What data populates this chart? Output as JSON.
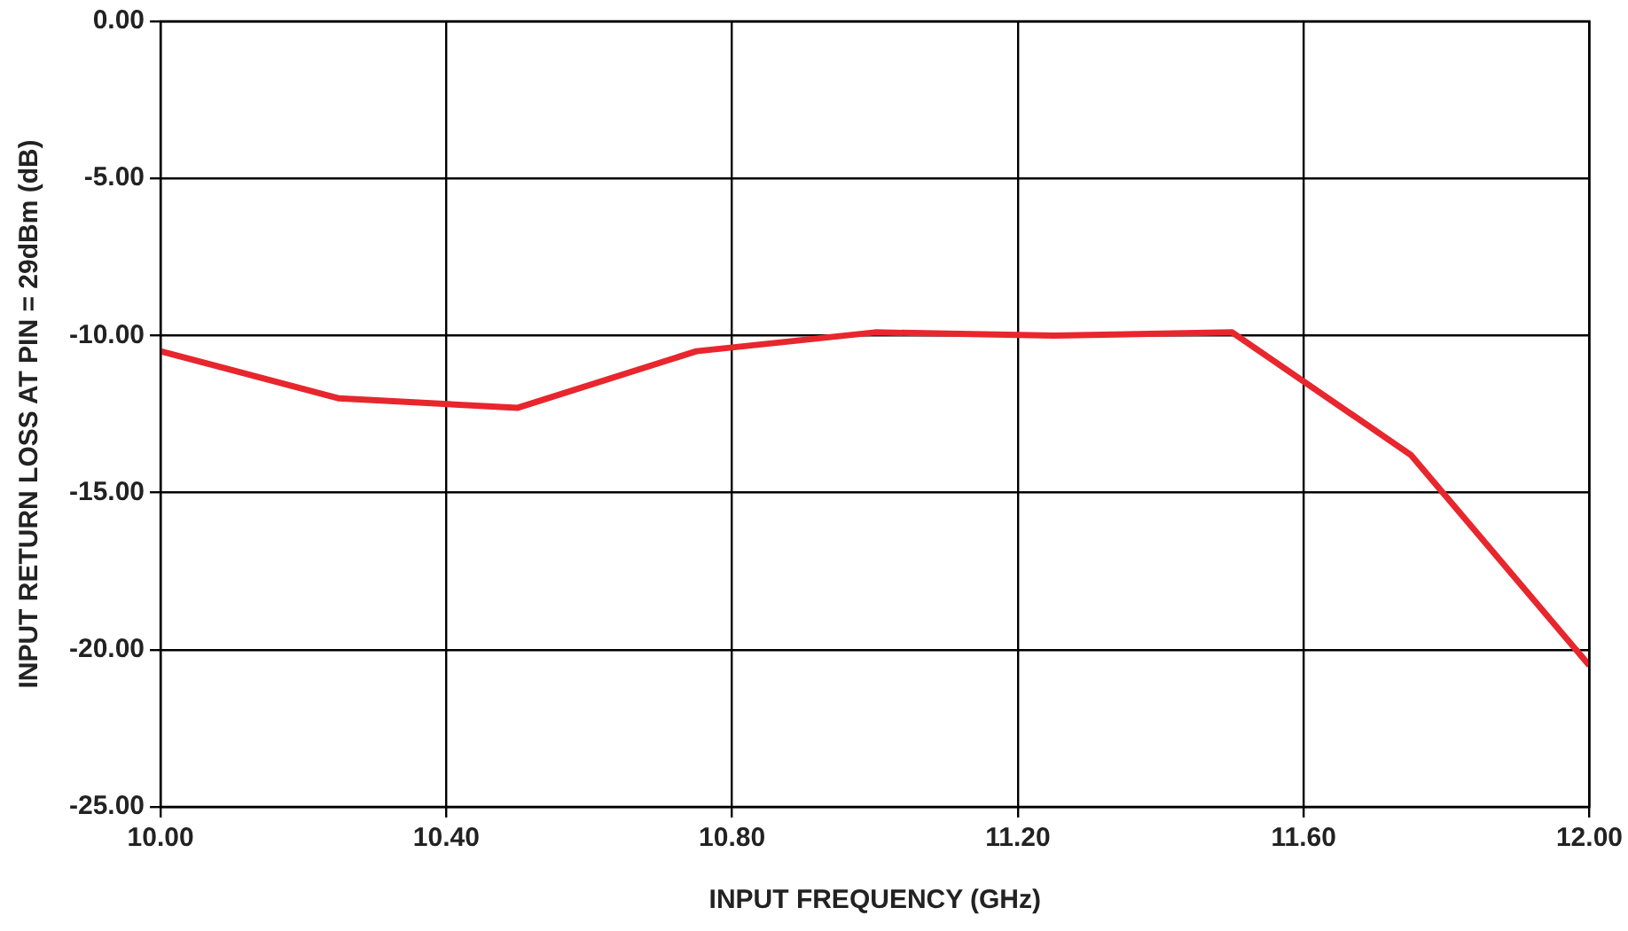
{
  "chart_data": {
    "type": "line",
    "xlabel": "INPUT FREQUENCY (GHz)",
    "ylabel": "INPUT RETURN LOSS AT PIN = 29dBm (dB)",
    "x": [
      10.0,
      10.25,
      10.5,
      10.75,
      11.0,
      11.25,
      11.5,
      11.75,
      12.0
    ],
    "series": [
      {
        "color": "#e8262d",
        "values": [
          -10.5,
          -12.0,
          -12.3,
          -10.5,
          -9.9,
          -10.0,
          -9.9,
          -13.8,
          -20.5
        ]
      }
    ],
    "xlim": [
      10.0,
      12.0
    ],
    "xticks": [
      {
        "value": 10.0,
        "label": "10.00"
      },
      {
        "value": 10.4,
        "label": "10.40"
      },
      {
        "value": 10.8,
        "label": "10.80"
      },
      {
        "value": 11.2,
        "label": "11.20"
      },
      {
        "value": 11.6,
        "label": "11.60"
      },
      {
        "value": 12.0,
        "label": "12.00"
      }
    ],
    "ylim": [
      -25,
      0
    ],
    "yticks": [
      {
        "value": -25,
        "label": "-25.00"
      },
      {
        "value": -20,
        "label": "-20.00"
      },
      {
        "value": -15,
        "label": "-15.00"
      },
      {
        "value": -10,
        "label": "-10.00"
      },
      {
        "value": -5,
        "label": "-5.00"
      },
      {
        "value": 0,
        "label": "0.00"
      }
    ],
    "grid": true,
    "legend": false,
    "marker": "none",
    "line_style": "solid"
  }
}
